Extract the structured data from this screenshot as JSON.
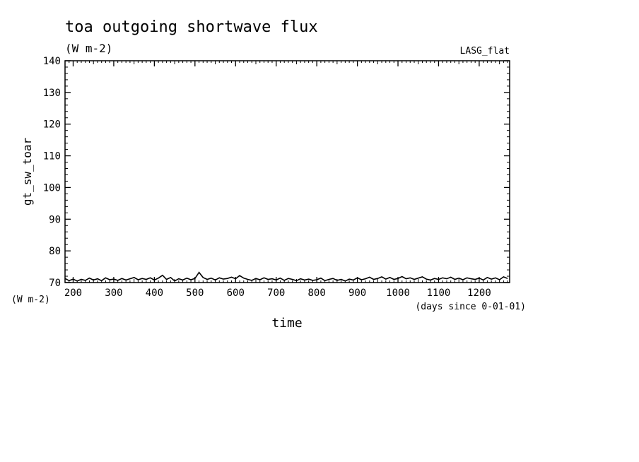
{
  "chart_data": {
    "type": "line",
    "title": "toa outgoing shortwave flux",
    "subtitle": "(W m-2)",
    "corner_label": "LASG_flat",
    "xlabel": "time",
    "x_units": "(days since 0-01-01)",
    "ylabel": "gt_sw_toar",
    "y_units": "(W m-2)",
    "xlim": [
      180,
      1275
    ],
    "ylim": [
      70,
      140
    ],
    "x_ticks": [
      200,
      300,
      400,
      500,
      600,
      700,
      800,
      900,
      1000,
      1100,
      1200
    ],
    "x_tick_labels": [
      "200",
      "300",
      "400",
      "500",
      "600",
      "700",
      "800",
      "900",
      "1000",
      "1100",
      "1200"
    ],
    "y_ticks": [
      70,
      80,
      90,
      100,
      110,
      120,
      130,
      140
    ],
    "y_tick_labels": [
      "70",
      "80",
      "90",
      "100",
      "110",
      "120",
      "130",
      "140"
    ],
    "grid": false,
    "series": [
      {
        "x": [
          180,
          190,
          200,
          210,
          220,
          230,
          240,
          250,
          260,
          270,
          280,
          290,
          300,
          310,
          320,
          330,
          340,
          350,
          360,
          370,
          380,
          390,
          400,
          410,
          420,
          430,
          440,
          450,
          460,
          470,
          480,
          490,
          500,
          510,
          520,
          530,
          540,
          550,
          560,
          570,
          580,
          590,
          600,
          610,
          620,
          630,
          640,
          650,
          660,
          670,
          680,
          690,
          700,
          710,
          720,
          730,
          740,
          750,
          760,
          770,
          780,
          790,
          800,
          810,
          820,
          830,
          840,
          850,
          860,
          870,
          880,
          890,
          900,
          910,
          920,
          930,
          940,
          950,
          960,
          970,
          980,
          990,
          1000,
          1010,
          1020,
          1030,
          1040,
          1050,
          1060,
          1070,
          1080,
          1090,
          1100,
          1110,
          1120,
          1130,
          1140,
          1150,
          1160,
          1170,
          1180,
          1190,
          1200,
          1210,
          1220,
          1230,
          1240,
          1250,
          1260,
          1270
        ],
        "values": [
          71.3,
          70.6,
          71.1,
          70.5,
          71.0,
          70.7,
          71.4,
          70.8,
          71.2,
          70.6,
          71.5,
          70.9,
          71.1,
          70.7,
          71.3,
          70.8,
          71.2,
          71.6,
          70.9,
          71.3,
          71.0,
          71.5,
          70.8,
          71.4,
          72.3,
          71.0,
          71.6,
          70.5,
          71.2,
          70.8,
          71.4,
          70.9,
          71.3,
          73.2,
          71.6,
          71.0,
          71.4,
          70.8,
          71.5,
          71.1,
          71.3,
          71.7,
          71.2,
          72.2,
          71.4,
          71.0,
          70.7,
          71.3,
          70.9,
          71.5,
          71.0,
          71.2,
          70.8,
          71.4,
          70.7,
          71.3,
          71.0,
          70.6,
          71.2,
          70.8,
          71.1,
          70.7,
          70.9,
          71.4,
          70.6,
          71.0,
          71.3,
          70.7,
          71.0,
          70.5,
          71.1,
          70.8,
          71.5,
          70.9,
          71.2,
          71.7,
          71.0,
          71.3,
          71.8,
          71.1,
          71.6,
          71.0,
          71.3,
          71.9,
          71.2,
          71.5,
          71.0,
          71.4,
          71.8,
          71.1,
          70.8,
          71.3,
          71.0,
          71.5,
          71.2,
          71.7,
          71.0,
          71.4,
          70.9,
          71.5,
          71.2,
          71.0,
          71.4,
          70.8,
          71.6,
          71.1,
          71.5,
          70.9,
          71.8,
          71.3
        ]
      }
    ]
  }
}
